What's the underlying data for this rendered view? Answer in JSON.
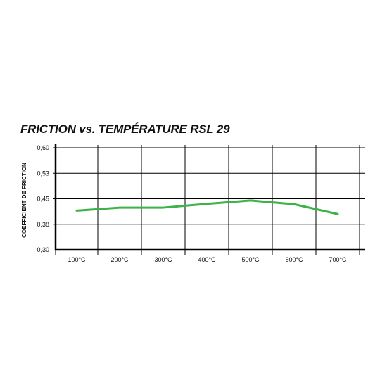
{
  "chart_data": {
    "type": "line",
    "title": "FRICTION vs. TEMPÉRATURE RSL 29",
    "xlabel": "",
    "ylabel": "COEFFICIENT DE FRICTION",
    "categories": [
      "100°C",
      "200°C",
      "300°C",
      "400°C",
      "500°C",
      "600°C",
      "700°C"
    ],
    "y_tick_labels": [
      "0,60",
      "0,53",
      "0,45",
      "0,38",
      "0,30"
    ],
    "ylim": [
      0.3,
      0.6
    ],
    "grid": true,
    "series": [
      {
        "values": [
          0.415,
          0.424,
          0.424,
          0.435,
          0.445,
          0.434,
          0.405
        ],
        "color": "#3db249"
      }
    ]
  }
}
